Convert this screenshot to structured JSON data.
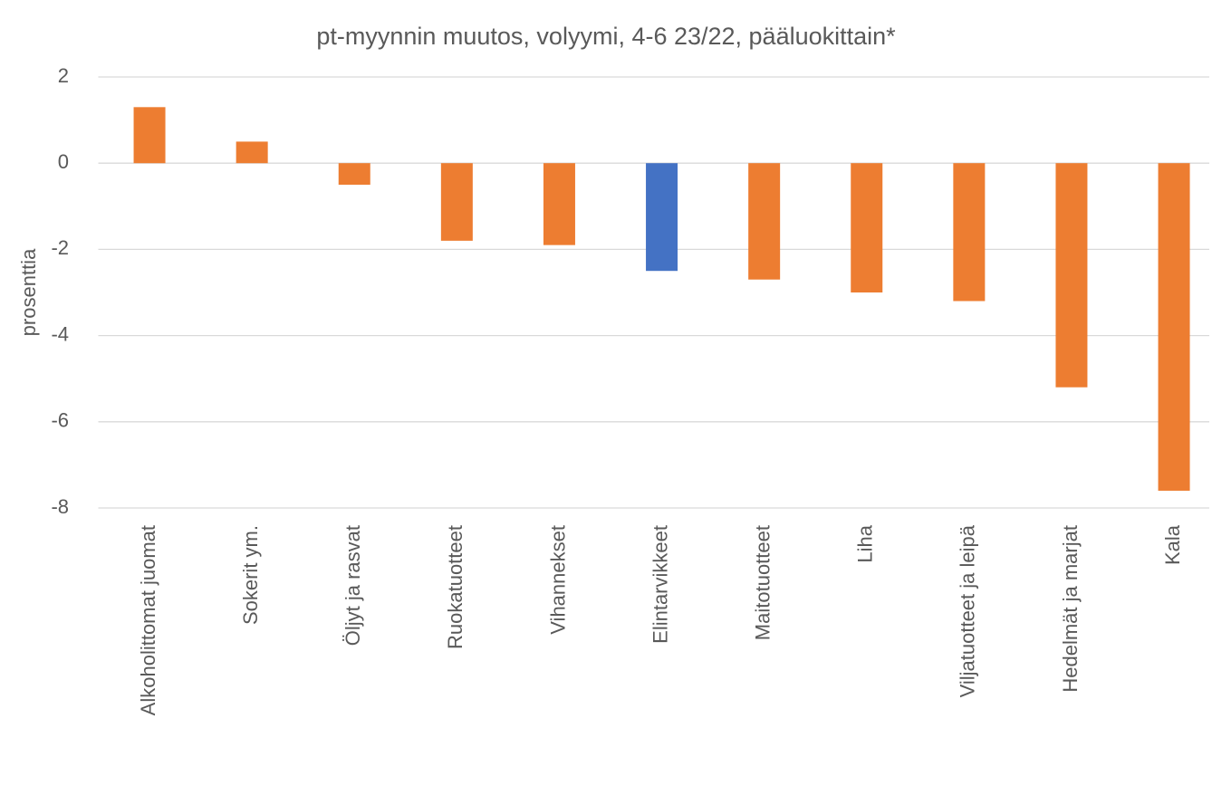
{
  "chart_data": {
    "type": "bar",
    "title": "pt-myynnin muutos, volyymi, 4-6 23/22, pääluokittain*",
    "y_label": "prosenttia",
    "categories": [
      "Alkoholittomat juomat",
      "Sokerit ym.",
      "Öljyt ja rasvat",
      "Ruokatuotteet",
      "Vihannekset",
      "Elintarvikkeet",
      "Maitotuotteet",
      "Liha",
      "Viljatuotteet ja leipä",
      "Hedelmät ja marjat",
      "Kala"
    ],
    "values": [
      1.3,
      0.5,
      -0.5,
      -1.8,
      -1.9,
      -2.5,
      -2.7,
      -3.0,
      -3.2,
      -5.2,
      -7.6
    ],
    "colors": [
      "#ed7d31",
      "#ed7d31",
      "#ed7d31",
      "#ed7d31",
      "#ed7d31",
      "#4472c4",
      "#ed7d31",
      "#ed7d31",
      "#ed7d31",
      "#ed7d31",
      "#ed7d31"
    ],
    "ylim": [
      -8,
      2
    ],
    "yticks": [
      -8,
      -6,
      -4,
      -2,
      0,
      2
    ],
    "grid": true
  }
}
